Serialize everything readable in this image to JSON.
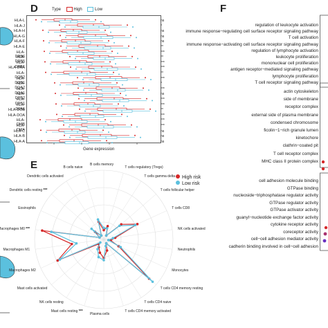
{
  "panels": {
    "d_letter": "D",
    "e_letter": "E",
    "f_letter": "F"
  },
  "panel_d": {
    "legend_title": "Type",
    "legend_high": "High",
    "legend_low": "Low",
    "xlabel": "Gene expression",
    "genes": [
      "HLA-L",
      "HLA-J",
      "HLA-H",
      "HLA-G",
      "HLA-F",
      "HLA-E",
      "HLA-DRB6",
      "HLA-DRB5",
      "HLA-DRB1",
      "HLA-DRA",
      "HLA-DQB2",
      "HLA-DQB1",
      "HLA-DQA2",
      "HLA-DQA1",
      "HLA-DPB2",
      "HLA-DPB1",
      "HLA-DPA1",
      "HLA-DOB",
      "HLA-DOA",
      "HLA-DMB",
      "HLA-DMA",
      "HLA-C",
      "HLA-B",
      "HLA-A"
    ],
    "significance": [
      "ns",
      "*",
      "ns",
      "ns",
      "ns",
      "**",
      "***",
      "**",
      "***",
      "***",
      "**",
      "***",
      "*",
      "***",
      "ns",
      "***",
      "***",
      "**",
      "***",
      "***",
      "***",
      "ns",
      "ns",
      "ns"
    ],
    "colors": {
      "high": "#d62728",
      "low": "#5bc0de"
    }
  },
  "panel_e": {
    "legend": [
      {
        "label": "High risk",
        "color": "#d62728"
      },
      {
        "label": "Low risk",
        "color": "#5bc0de"
      }
    ],
    "chart_data": {
      "type": "radar",
      "categories": [
        "B cells memory",
        "T cells regulatory (Tregs)",
        "T cells gamma delta",
        "T cells follicular helper",
        "T cells CD8",
        "NK cells activated",
        "Neutrophils",
        "Monocytes",
        "T cells CD4 memory resting",
        "T cells CD4 naive",
        "T cells CD4 memory activated",
        "Plasma cells",
        "Mast cells resting",
        "NK cells resting",
        "Mast cells activated",
        "Macrophages M2",
        "Macrophages M1",
        "Macrophages M0",
        "Eosinophils",
        "Dendritic cells resting",
        "Dendritic cells activated",
        "B cells naive"
      ],
      "significance": [
        "",
        "",
        "",
        "",
        "",
        "",
        "",
        "",
        "",
        "",
        "",
        "",
        "***",
        "",
        "",
        "",
        "",
        "***",
        "",
        "***",
        "",
        ""
      ],
      "series": [
        {
          "name": "High risk",
          "values": [
            0.04,
            0.06,
            0.02,
            0.1,
            0.16,
            0.05,
            0.03,
            0.07,
            0.26,
            0.02,
            0.05,
            0.08,
            0.06,
            0.04,
            0.03,
            0.22,
            0.14,
            0.27,
            0.02,
            0.05,
            0.02,
            0.08
          ]
        },
        {
          "name": "Low risk",
          "values": [
            0.05,
            0.05,
            0.02,
            0.09,
            0.15,
            0.04,
            0.02,
            0.08,
            0.28,
            0.02,
            0.03,
            0.09,
            0.08,
            0.05,
            0.02,
            0.21,
            0.12,
            0.23,
            0.02,
            0.07,
            0.02,
            0.09
          ]
        }
      ]
    }
  },
  "panel_f": {
    "terms": [
      "regulation of leukocyte activation",
      "immune response−regulating cell surface receptor signaling pathway",
      "T cell activation",
      "immune response−activating cell surface receptor signaling pathway",
      "regulation of lymphocyte activation",
      "leukocyte proliferation",
      "mononuclear cell proliferation",
      "antigen receptor−mediated signaling pathway",
      "lymphocyte proliferation",
      "T cell receptor signaling pathway",
      "actin cytoskeleton",
      "side of membrane",
      "receptor complex",
      "external side of plasma membrane",
      "condensed chromosome",
      "ficolin−1−rich granule lumen",
      "kinetochore",
      "clathrin−coated pit",
      "T cell receptor complex",
      "MHC class II protein complex",
      "cell adhesion molecule binding",
      "GTPase binding",
      "nucleoside−triphosphatase regulator activity",
      "GTPase regulator activity",
      "GTPase activator activity",
      "guanyl−nucleotide exchange factor activity",
      "cytokine receptor activity",
      "coreceptor activity",
      "cell−cell adhesion mediator activity",
      "cadherin binding involved in cell−cell adhesion"
    ]
  }
}
